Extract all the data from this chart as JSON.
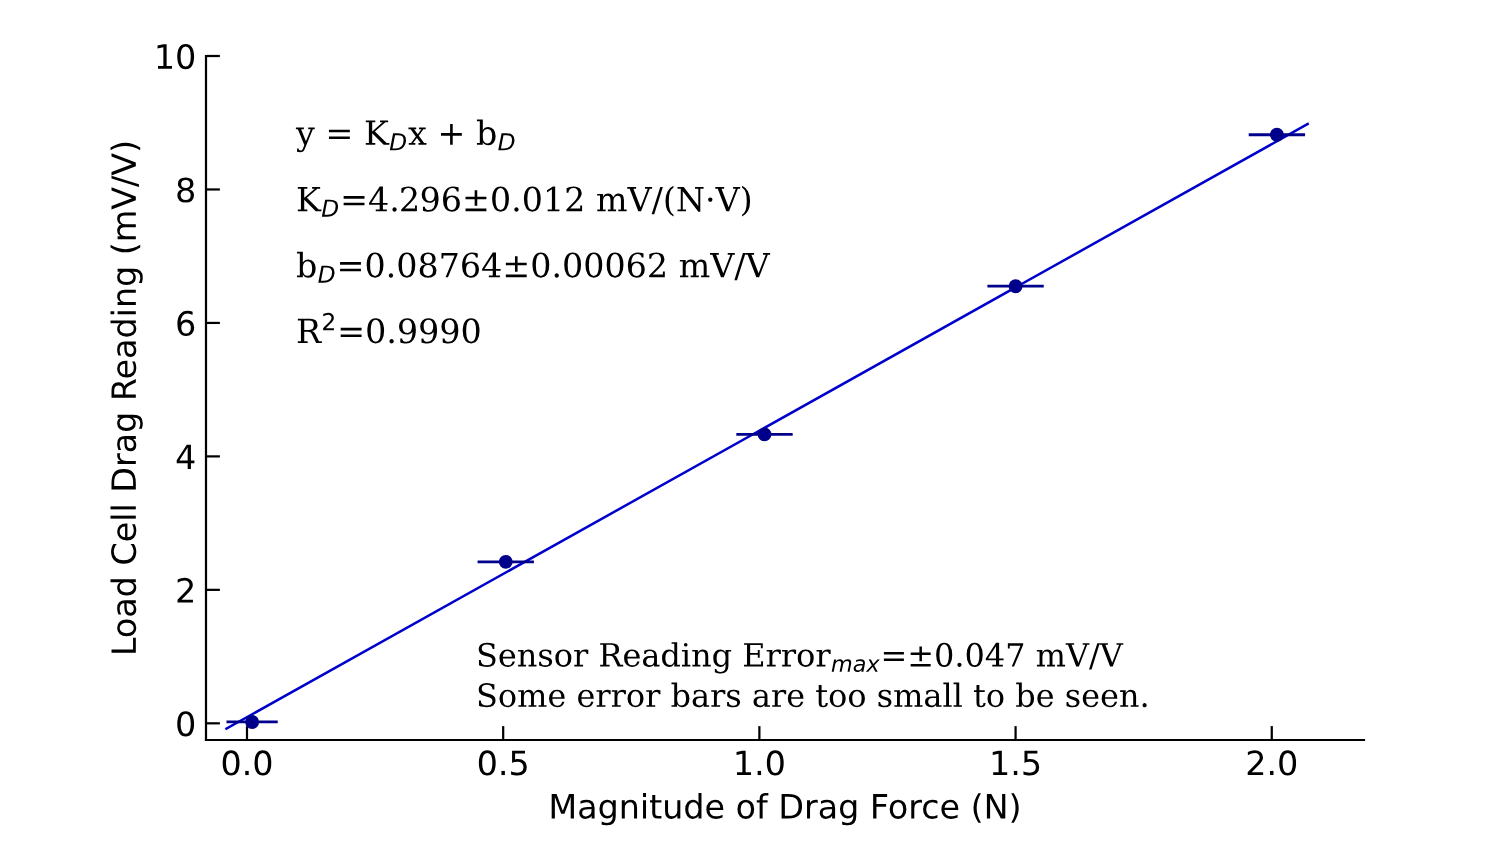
{
  "chart_data": {
    "type": "scatter",
    "xlabel": "Magnitude of Drag Force (N)",
    "ylabel": "Load Cell Drag Reading (mV/V)",
    "x": [
      0.01,
      0.505,
      1.01,
      1.5,
      2.01
    ],
    "series": [
      {
        "marker": "circle",
        "color": "#00008b",
        "values": [
          0.02,
          2.42,
          4.33,
          6.55,
          8.82
        ],
        "xerrors": [
          0.05,
          0.055,
          0.055,
          0.055,
          0.055
        ]
      },
      {
        "type": "line",
        "color": "#0000cd",
        "x": [
          -0.04,
          2.07
        ],
        "values": [
          -0.08,
          8.98
        ]
      }
    ],
    "xlim": [
      -0.08,
      2.18
    ],
    "ylim": [
      -0.25,
      10
    ],
    "xticks": [
      {
        "value": 0,
        "label": "0.0"
      },
      0.5,
      {
        "value": 1,
        "label": "1.0"
      },
      1.5,
      {
        "value": 2,
        "label": "2.0"
      }
    ],
    "yticks": [
      0,
      2,
      4,
      6,
      8,
      10
    ],
    "grid": false,
    "legend": false,
    "annotations": [
      "y = K$_{D}$x + b$_{D}$",
      "K$_{D}$=4.296±0.012 mV/(N·V)",
      "b$_{D}$=0.08764±0.00062 mV/V",
      "R$^{2}$=0.9990",
      "Sensor Reading Error$_{max}$=±0.047 mV/V",
      "Some error bars are too small to be seen."
    ]
  }
}
